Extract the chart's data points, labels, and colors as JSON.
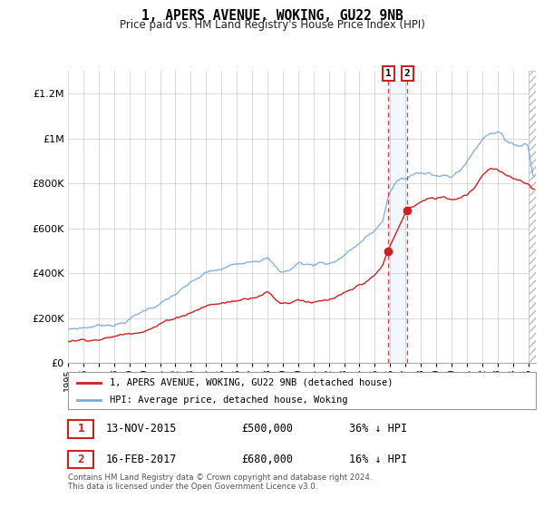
{
  "title": "1, APERS AVENUE, WOKING, GU22 9NB",
  "subtitle": "Price paid vs. HM Land Registry's House Price Index (HPI)",
  "ytick_values": [
    0,
    200000,
    400000,
    600000,
    800000,
    1000000,
    1200000
  ],
  "ylim": [
    0,
    1300000
  ],
  "xlim_start": 1995.0,
  "xlim_end": 2025.5,
  "hpi_color": "#7aaadd",
  "price_color": "#cc2222",
  "transaction1_date": 2015.88,
  "transaction1_price": 500000,
  "transaction2_date": 2017.12,
  "transaction2_price": 680000,
  "legend_label1": "1, APERS AVENUE, WOKING, GU22 9NB (detached house)",
  "legend_label2": "HPI: Average price, detached house, Woking",
  "annotation1_label": "13-NOV-2015",
  "annotation1_price": "£500,000",
  "annotation1_hpi": "36% ↓ HPI",
  "annotation2_label": "16-FEB-2017",
  "annotation2_price": "£680,000",
  "annotation2_hpi": "16% ↓ HPI",
  "footer": "Contains HM Land Registry data © Crown copyright and database right 2024.\nThis data is licensed under the Open Government Licence v3.0.",
  "background_color": "#ffffff",
  "grid_color": "#cccccc"
}
